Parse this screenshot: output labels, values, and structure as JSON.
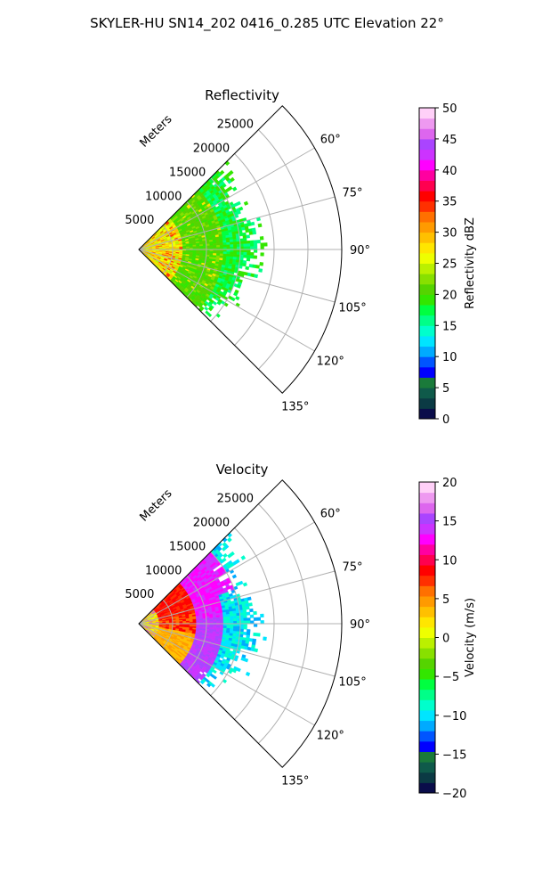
{
  "figure": {
    "title": "SKYLER-HU  SN14_202  0416_0.285 UTC Elevation 22°"
  },
  "chart_data": [
    {
      "type": "heatmap",
      "title": "Reflectivity",
      "range_label": "Meters",
      "range_ticks": [
        "5000",
        "10000",
        "15000",
        "20000",
        "25000"
      ],
      "range_values": [
        5000,
        10000,
        15000,
        20000,
        25000
      ],
      "rmax": 30000,
      "azimuth_ticks": [
        "60°",
        "75°",
        "90°",
        "105°",
        "120°",
        "135°"
      ],
      "azimuth_values": [
        60,
        75,
        90,
        105,
        120,
        135
      ],
      "azimuth_range": [
        45,
        135
      ],
      "colorbar": {
        "label": "Reflectivity dBZ",
        "vmin": 0,
        "vmax": 50,
        "ticks": [
          "0",
          "5",
          "10",
          "15",
          "20",
          "25",
          "30",
          "35",
          "40",
          "45",
          "50"
        ],
        "tick_values": [
          0,
          5,
          10,
          15,
          20,
          25,
          30,
          35,
          40,
          45,
          50
        ],
        "colors": [
          "#0a0d4a",
          "#0b3a44",
          "#0f5a4a",
          "#1a7a3a",
          "#0000ff",
          "#0055ff",
          "#00aaff",
          "#00e5ff",
          "#00ffcc",
          "#00ff88",
          "#00ff40",
          "#33e600",
          "#55d400",
          "#88e000",
          "#bbf000",
          "#eeff00",
          "#ffe600",
          "#ffc000",
          "#ff9a00",
          "#ff7000",
          "#ff3000",
          "#ff0000",
          "#ff0050",
          "#ff00a0",
          "#ff00ff",
          "#cc33ff",
          "#aa44ff",
          "#dd66ee",
          "#ee99f0",
          "#ffd0f8"
        ]
      },
      "field_description_samples": [
        {
          "az": 90,
          "r_frac": 0.05,
          "value": 22
        },
        {
          "az": 90,
          "r_frac": 0.3,
          "value": 26
        },
        {
          "az": 90,
          "r_frac": 0.5,
          "value": 18
        },
        {
          "az": 90,
          "r_frac": 0.75,
          "value": 16
        }
      ]
    },
    {
      "type": "heatmap",
      "title": "Velocity",
      "range_label": "Meters",
      "range_ticks": [
        "5000",
        "10000",
        "15000",
        "20000",
        "25000"
      ],
      "range_values": [
        5000,
        10000,
        15000,
        20000,
        25000
      ],
      "rmax": 30000,
      "azimuth_ticks": [
        "60°",
        "75°",
        "90°",
        "105°",
        "120°",
        "135°"
      ],
      "azimuth_values": [
        60,
        75,
        90,
        105,
        120,
        135
      ],
      "azimuth_range": [
        45,
        135
      ],
      "colorbar": {
        "label": "Velocity (m/s)",
        "vmin": -20,
        "vmax": 20,
        "ticks": [
          "−20",
          "−15",
          "−10",
          "−5",
          "0",
          "5",
          "10",
          "15",
          "20"
        ],
        "tick_values": [
          -20,
          -15,
          -10,
          -5,
          0,
          5,
          10,
          15,
          20
        ],
        "colors": [
          "#0a0d4a",
          "#0b3a44",
          "#0f5a4a",
          "#1a7a3a",
          "#0000ff",
          "#0055ff",
          "#00aaff",
          "#00e5ff",
          "#00ffcc",
          "#00ff88",
          "#00ff40",
          "#33e600",
          "#55d400",
          "#88e000",
          "#bbf000",
          "#eeff00",
          "#ffe600",
          "#ffc000",
          "#ff9a00",
          "#ff7000",
          "#ff3000",
          "#ff0000",
          "#ff0050",
          "#ff00a0",
          "#ff00ff",
          "#cc33ff",
          "#aa44ff",
          "#dd66ee",
          "#ee99f0",
          "#ffd0f8"
        ]
      },
      "field_description_samples": [
        {
          "az": 90,
          "r_frac": 0.05,
          "value": 6
        },
        {
          "az": 90,
          "r_frac": 0.3,
          "value": 12
        },
        {
          "az": 90,
          "r_frac": 0.5,
          "value": -8
        },
        {
          "az": 90,
          "r_frac": 0.75,
          "value": -10
        }
      ]
    }
  ]
}
